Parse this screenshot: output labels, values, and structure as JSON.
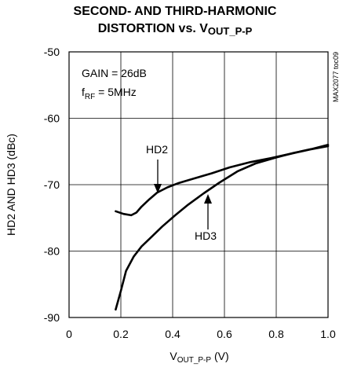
{
  "chart_data": {
    "type": "line",
    "title_line1": "SECOND- AND THIRD-HARMONIC",
    "title_line2_main": "DISTORTION vs. V",
    "title_line2_sub": "OUT_P-P",
    "ylabel": "HD2 AND HD3 (dBc)",
    "xlabel_main": "V",
    "xlabel_sub": "OUT_P-P",
    "xlabel_unit": " (V)",
    "xlim": [
      0,
      1.0
    ],
    "ylim": [
      -90,
      -50
    ],
    "xticks": [
      0,
      0.2,
      0.4,
      0.6,
      0.8,
      1.0
    ],
    "xtick_labels": [
      "0",
      "0.2",
      "0.4",
      "0.6",
      "0.8",
      "1.0"
    ],
    "yticks": [
      -50,
      -60,
      -70,
      -80,
      -90
    ],
    "ytick_labels": [
      "-50",
      "-60",
      "-70",
      "-80",
      "-90"
    ],
    "grid": true,
    "annotation_gain": "GAIN = 26dB",
    "annotation_frf_main": "f",
    "annotation_frf_sub": "RF",
    "annotation_frf_rest": " = 5MHz",
    "side_code": "MAX2077 toc09",
    "line_color": "#000000",
    "series": [
      {
        "name": "HD2",
        "x": [
          0.18,
          0.21,
          0.24,
          0.26,
          0.28,
          0.31,
          0.34,
          0.38,
          0.42,
          0.48,
          0.55,
          0.62,
          0.7,
          0.78,
          0.86,
          0.93,
          1.0
        ],
        "y": [
          -74.0,
          -74.4,
          -74.6,
          -74.2,
          -73.3,
          -72.2,
          -71.2,
          -70.4,
          -69.8,
          -69.1,
          -68.3,
          -67.4,
          -66.6,
          -66.0,
          -65.3,
          -64.7,
          -64.2
        ]
      },
      {
        "name": "HD3",
        "x": [
          0.18,
          0.2,
          0.22,
          0.25,
          0.28,
          0.32,
          0.36,
          0.41,
          0.46,
          0.52,
          0.58,
          0.65,
          0.72,
          0.8,
          0.87,
          0.94,
          1.0
        ],
        "y": [
          -88.8,
          -86.0,
          -83.0,
          -80.8,
          -79.3,
          -77.8,
          -76.3,
          -74.6,
          -73.0,
          -71.3,
          -69.7,
          -68.0,
          -66.8,
          -65.9,
          -65.2,
          -64.6,
          -64.0
        ]
      }
    ]
  }
}
